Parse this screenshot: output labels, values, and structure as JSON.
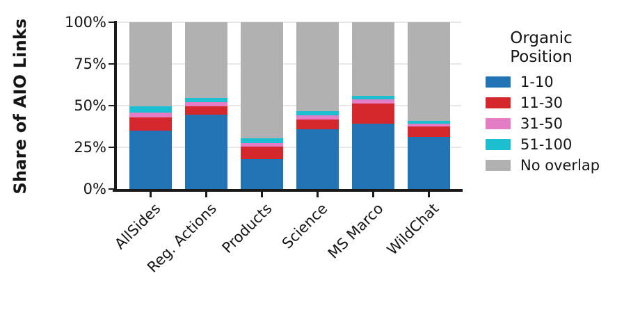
{
  "chart_data": {
    "type": "bar",
    "stacked": true,
    "orientation": "vertical",
    "ylabel": "Share of AIO Links",
    "xlabel": "",
    "ylim": [
      0,
      100
    ],
    "yticks": [
      {
        "value": 0,
        "label": "0%"
      },
      {
        "value": 25,
        "label": "25%"
      },
      {
        "value": 50,
        "label": "50%"
      },
      {
        "value": 75,
        "label": "75%"
      },
      {
        "value": 100,
        "label": "100%"
      }
    ],
    "grid": true,
    "categories": [
      "AllSides",
      "Reg. Actions",
      "Products",
      "Science",
      "MS Marco",
      "WildChat"
    ],
    "legend": {
      "title": "Organic Position",
      "position": "right"
    },
    "series": [
      {
        "name": "1-10",
        "color": "#2274b5",
        "values": [
          34.8,
          44.7,
          17.9,
          35.7,
          39.2,
          31.3
        ]
      },
      {
        "name": "11-30",
        "color": "#d4282c",
        "values": [
          8.3,
          5.0,
          7.6,
          6.0,
          11.9,
          6.3
        ]
      },
      {
        "name": "31-50",
        "color": "#e37ec6",
        "values": [
          2.7,
          2.2,
          2.1,
          2.3,
          2.6,
          1.6
        ]
      },
      {
        "name": "51-100",
        "color": "#1cbfd0",
        "values": [
          3.9,
          2.8,
          2.9,
          2.5,
          2.1,
          1.7
        ]
      },
      {
        "name": "No overlap",
        "color": "#b1b1b1",
        "values": [
          50.3,
          45.3,
          69.5,
          53.5,
          44.2,
          59.1
        ]
      }
    ]
  }
}
